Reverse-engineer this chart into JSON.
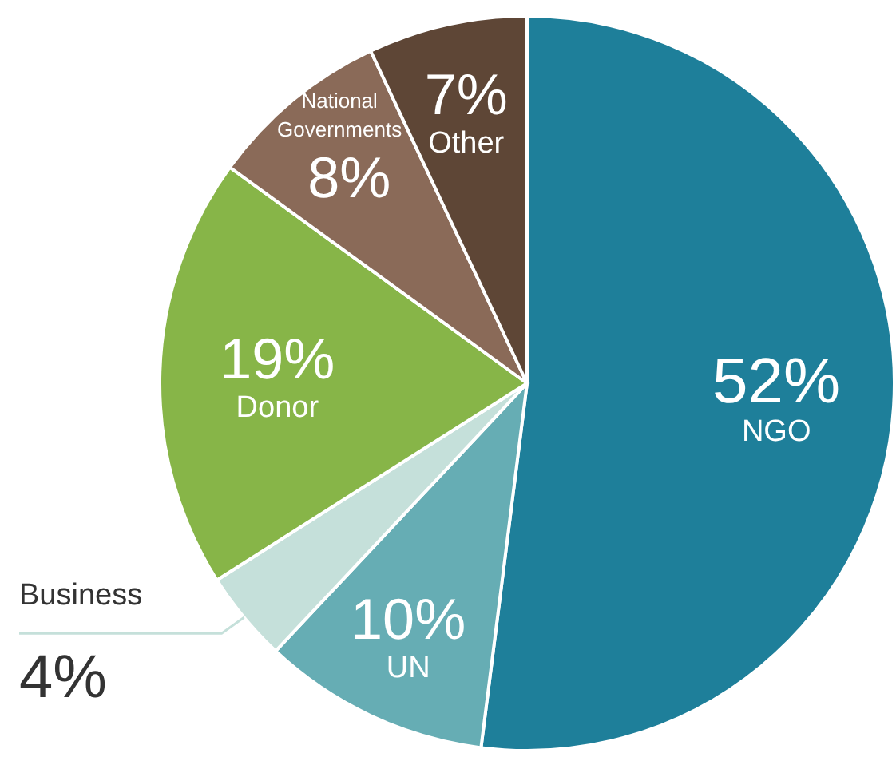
{
  "chart_data": {
    "type": "pie",
    "categories": [
      "NGO",
      "UN",
      "Business",
      "Donor",
      "National Governments",
      "Other"
    ],
    "values": [
      52,
      10,
      4,
      19,
      8,
      7
    ],
    "value_labels": [
      "52%",
      "10%",
      "4%",
      "19%",
      "8%",
      "7%"
    ],
    "colors": [
      "#1e7f9a",
      "#66adb4",
      "#c5e0da",
      "#87b548",
      "#8a6a58",
      "#5e4636"
    ],
    "legend": false
  }
}
